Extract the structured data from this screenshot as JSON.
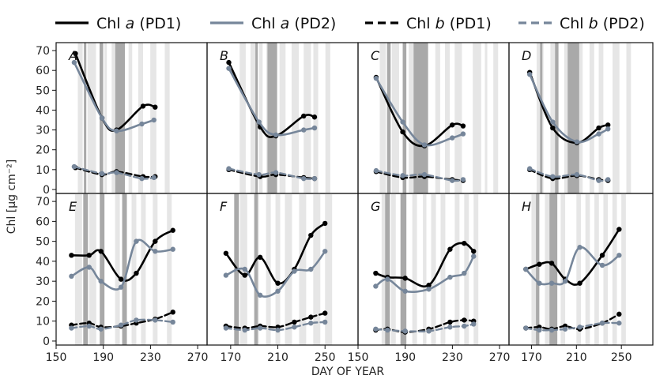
{
  "chart_data": {
    "type": "line",
    "ylabel": "Chl [µg cm⁻²]",
    "xlabel": "DAY OF YEAR",
    "legend_placement": "top",
    "ylim": [
      -2,
      74
    ],
    "yticks": [
      0,
      10,
      20,
      30,
      40,
      50,
      60,
      70
    ],
    "top_row": {
      "xlim": [
        150,
        275
      ]
    },
    "bottom_row": {
      "xlim": [
        150,
        278
      ]
    },
    "x_tick_labels": [
      [
        "150",
        "190",
        "230",
        "270"
      ],
      [
        "170",
        "210",
        "250"
      ],
      [
        "150",
        "190",
        "230",
        "270"
      ],
      [
        "170",
        "210",
        "250"
      ]
    ],
    "legend": [
      {
        "label": "Chl a (PD1)",
        "main": "Chl ",
        "italic": "a",
        "rest": " (PD1)",
        "color": "#000000",
        "dash": false
      },
      {
        "label": "Chl a (PD2)",
        "main": "Chl ",
        "italic": "a",
        "rest": " (PD2)",
        "color": "#76869a",
        "dash": false
      },
      {
        "label": "Chl b (PD1)",
        "main": "Chl ",
        "italic": "b",
        "rest": " (PD1)",
        "color": "#000000",
        "dash": true
      },
      {
        "label": "Chl b (PD2)",
        "main": "Chl ",
        "italic": "b",
        "rest": " (PD2)",
        "color": "#76869a",
        "dash": true
      }
    ],
    "shading_colors": {
      "light": "#e6e6e6",
      "dark": "#a9a9a9"
    },
    "panels": [
      {
        "label": "A",
        "shading": {
          "light": [
            [
              168,
              172
            ],
            [
              176,
              183
            ],
            [
              190,
              192
            ],
            [
              196,
              200
            ],
            [
              210,
              213
            ],
            [
              218,
              222
            ],
            [
              228,
              233
            ],
            [
              240,
              244
            ]
          ],
          "dark": [
            [
              173,
              175
            ],
            [
              186,
              189
            ],
            [
              199,
              207
            ]
          ]
        },
        "series": [
          {
            "name": "Chl a (PD1)",
            "x": [
              166,
              188,
              200,
              222,
              232
            ],
            "y": [
              68.5,
              36,
              30,
              42,
              41.5
            ]
          },
          {
            "name": "Chl a (PD2)",
            "x": [
              165,
              188,
              200,
              221,
              231
            ],
            "y": [
              64,
              36,
              29.5,
              33,
              35
            ]
          },
          {
            "name": "Chl b (PD1)",
            "x": [
              166,
              188,
              200,
              222,
              232
            ],
            "y": [
              11,
              7.5,
              9,
              6.5,
              6.5
            ]
          },
          {
            "name": "Chl b (PD2)",
            "x": [
              165,
              188,
              200,
              221,
              231
            ],
            "y": [
              11.5,
              8,
              8.5,
              5.5,
              6
            ]
          }
        ]
      },
      {
        "label": "B",
        "shading": {
          "light": [
            [
              177,
              182
            ],
            [
              186,
              190
            ],
            [
              193,
              196
            ],
            [
              199,
              201
            ],
            [
              210,
              215
            ],
            [
              220,
              226
            ],
            [
              230,
              236
            ],
            [
              238,
              242
            ],
            [
              248,
              252
            ]
          ],
          "dark": [
            [
              190,
              192
            ],
            [
              200,
              208
            ]
          ]
        },
        "series": [
          {
            "name": "Chl a (PD1)",
            "x": [
              168,
              194,
              207,
              230,
              239
            ],
            "y": [
              64,
              31.5,
              27,
              37,
              36.5
            ]
          },
          {
            "name": "Chl a (PD2)",
            "x": [
              168,
              193,
              207,
              230,
              239
            ],
            "y": [
              61,
              34,
              27.5,
              30,
              31
            ]
          },
          {
            "name": "Chl b (PD1)",
            "x": [
              168,
              194,
              207,
              230,
              239
            ],
            "y": [
              10,
              6.5,
              7.5,
              6,
              5.5
            ]
          },
          {
            "name": "Chl b (PD2)",
            "x": [
              168,
              193,
              207,
              230,
              239
            ],
            "y": [
              10.5,
              7.5,
              8.5,
              5.5,
              5.5
            ]
          }
        ]
      },
      {
        "label": "C",
        "shading": {
          "light": [
            [
              168,
              173
            ],
            [
              178,
              184
            ],
            [
              192,
              196
            ],
            [
              200,
              204
            ],
            [
              214,
              218
            ],
            [
              222,
              226
            ],
            [
              230,
              236
            ],
            [
              245,
              252
            ],
            [
              255,
              257
            ],
            [
              262,
              266
            ]
          ],
          "dark": [
            [
              174,
              177
            ],
            [
              187,
              190
            ],
            [
              196,
              208
            ]
          ]
        },
        "series": [
          {
            "name": "Chl a (PD1)",
            "x": [
              165,
              187,
              205,
              228,
              237
            ],
            "y": [
              56.5,
              29,
              22,
              32.5,
              32
            ]
          },
          {
            "name": "Chl a (PD2)",
            "x": [
              165,
              187,
              205,
              228,
              237
            ],
            "y": [
              56,
              34,
              22.5,
              26,
              28
            ]
          },
          {
            "name": "Chl b (PD1)",
            "x": [
              165,
              187,
              205,
              228,
              237
            ],
            "y": [
              9,
              6,
              6.5,
              5,
              4.5
            ]
          },
          {
            "name": "Chl b (PD2)",
            "x": [
              165,
              187,
              205,
              228,
              237
            ],
            "y": [
              9.5,
              7,
              7.5,
              4.5,
              5
            ]
          }
        ]
      },
      {
        "label": "D",
        "shading": {
          "light": [
            [
              174,
              180
            ],
            [
              186,
              190
            ],
            [
              198,
              202
            ],
            [
              210,
              214
            ],
            [
              220,
              224
            ],
            [
              228,
              232
            ],
            [
              240,
              246
            ],
            [
              252,
              256
            ]
          ],
          "dark": [
            [
              177,
              179
            ],
            [
              190,
              193
            ],
            [
              201,
              211
            ]
          ]
        },
        "series": [
          {
            "name": "Chl a (PD1)",
            "x": [
              168,
              188,
              209,
              228,
              236
            ],
            "y": [
              59,
              31,
              23.5,
              31,
              32.5
            ]
          },
          {
            "name": "Chl a (PD2)",
            "x": [
              168,
              188,
              209,
              228,
              236
            ],
            "y": [
              58,
              34,
              24,
              28,
              30.5
            ]
          },
          {
            "name": "Chl b (PD1)",
            "x": [
              168,
              188,
              209,
              228,
              236
            ],
            "y": [
              10,
              5.5,
              7,
              5,
              4.5
            ]
          },
          {
            "name": "Chl b (PD2)",
            "x": [
              168,
              188,
              209,
              228,
              236
            ],
            "y": [
              10.5,
              6.5,
              7.5,
              4.5,
              5
            ]
          }
        ]
      },
      {
        "label": "E",
        "shading": {
          "light": [
            [
              166,
              172
            ],
            [
              178,
              184
            ],
            [
              188,
              190
            ],
            [
              200,
              204
            ],
            [
              214,
              218
            ],
            [
              222,
              226
            ],
            [
              232,
              236
            ],
            [
              244,
              248
            ]
          ],
          "dark": [
            [
              173,
              177
            ],
            [
              187,
              191
            ],
            [
              206,
              210
            ]
          ]
        },
        "series": [
          {
            "name": "Chl a (PD1)",
            "x": [
              163,
              178,
              188,
              205,
              218,
              234,
              249
            ],
            "y": [
              43,
              43,
              45,
              31,
              34,
              50,
              55.5
            ]
          },
          {
            "name": "Chl a (PD2)",
            "x": [
              163,
              178,
              188,
              205,
              218,
              234,
              249
            ],
            "y": [
              32.5,
              37,
              30,
              27,
              50,
              45,
              46
            ]
          },
          {
            "name": "Chl b (PD1)",
            "x": [
              163,
              178,
              188,
              205,
              218,
              234,
              249
            ],
            "y": [
              8,
              9,
              7,
              7.5,
              9,
              11,
              14.5
            ]
          },
          {
            "name": "Chl b (PD2)",
            "x": [
              163,
              178,
              188,
              205,
              218,
              234,
              249
            ],
            "y": [
              6.5,
              7.5,
              6,
              8,
              10.5,
              10.5,
              9.5
            ]
          }
        ]
      },
      {
        "label": "F",
        "shading": {
          "light": [
            [
              178,
              184
            ],
            [
              190,
              194
            ],
            [
              200,
              204
            ],
            [
              208,
              212
            ],
            [
              216,
              222
            ],
            [
              228,
              234
            ],
            [
              240,
              246
            ],
            [
              250,
              256
            ]
          ],
          "dark": [
            [
              173,
              177
            ],
            [
              190,
              193
            ]
          ]
        },
        "series": [
          {
            "name": "Chl a (PD1)",
            "x": [
              166,
              182,
              195,
              210,
              224,
              238,
              250
            ],
            "y": [
              44,
              33,
              42,
              29,
              36,
              53,
              59
            ]
          },
          {
            "name": "Chl a (PD2)",
            "x": [
              166,
              182,
              195,
              210,
              224,
              238,
              250
            ],
            "y": [
              33,
              36,
              23,
              25,
              35,
              36,
              45
            ]
          },
          {
            "name": "Chl b (PD1)",
            "x": [
              166,
              182,
              195,
              210,
              224,
              238,
              250
            ],
            "y": [
              7.5,
              6.5,
              7.5,
              7,
              9.5,
              12,
              14
            ]
          },
          {
            "name": "Chl b (PD2)",
            "x": [
              166,
              182,
              195,
              210,
              224,
              238,
              250
            ],
            "y": [
              6.5,
              5.5,
              6.5,
              5.5,
              7,
              9,
              9.5
            ]
          }
        ]
      },
      {
        "label": "G",
        "shading": {
          "light": [
            [
              170,
              174
            ],
            [
              178,
              182
            ],
            [
              196,
              200
            ],
            [
              205,
              208
            ],
            [
              212,
              216
            ],
            [
              220,
              224
            ],
            [
              232,
              236
            ],
            [
              240,
              244
            ],
            [
              248,
              252
            ]
          ],
          "dark": [
            [
              173,
              177
            ],
            [
              186,
              191
            ]
          ]
        },
        "series": [
          {
            "name": "Chl a (PD1)",
            "x": [
              165,
              175,
              190,
              210,
              228,
              240,
              248
            ],
            "y": [
              34,
              32,
              31.5,
              28,
              46,
              49,
              45
            ]
          },
          {
            "name": "Chl a (PD2)",
            "x": [
              165,
              175,
              190,
              210,
              228,
              240,
              248
            ],
            "y": [
              27.5,
              31,
              25,
              26,
              32,
              34,
              42.5
            ]
          },
          {
            "name": "Chl b (PD1)",
            "x": [
              165,
              175,
              190,
              210,
              228,
              240,
              248
            ],
            "y": [
              5.5,
              6,
              4.5,
              6,
              9.5,
              10.5,
              10
            ]
          },
          {
            "name": "Chl b (PD2)",
            "x": [
              165,
              175,
              190,
              210,
              228,
              240,
              248
            ],
            "y": [
              6,
              5.5,
              5,
              5,
              7,
              7.5,
              8.5
            ]
          }
        ]
      },
      {
        "label": "H",
        "shading": {
          "light": [
            [
              170,
              176
            ],
            [
              182,
              186
            ],
            [
              196,
              200
            ],
            [
              210,
              214
            ],
            [
              218,
              222
            ],
            [
              226,
              230
            ],
            [
              234,
              238
            ],
            [
              242,
              246
            ],
            [
              250,
              254
            ]
          ],
          "dark": [
            [
              174,
              177
            ],
            [
              186,
              193
            ]
          ]
        },
        "series": [
          {
            "name": "Chl a (PD1)",
            "x": [
              165,
              177,
              188,
              200,
              213,
              233,
              248
            ],
            "y": [
              36,
              38.5,
              39,
              31,
              29,
              43,
              56
            ]
          },
          {
            "name": "Chl a (PD2)",
            "x": [
              165,
              177,
              188,
              200,
              213,
              233,
              248
            ],
            "y": [
              36,
              29,
              29,
              30,
              47,
              38,
              43
            ]
          },
          {
            "name": "Chl b (PD1)",
            "x": [
              165,
              177,
              188,
              200,
              213,
              233,
              248
            ],
            "y": [
              6.5,
              7,
              6,
              7.5,
              6,
              9,
              13.5
            ]
          },
          {
            "name": "Chl b (PD2)",
            "x": [
              165,
              177,
              188,
              200,
              213,
              233,
              248
            ],
            "y": [
              6.5,
              5.5,
              5.5,
              6,
              7,
              9,
              9
            ]
          }
        ]
      }
    ]
  }
}
